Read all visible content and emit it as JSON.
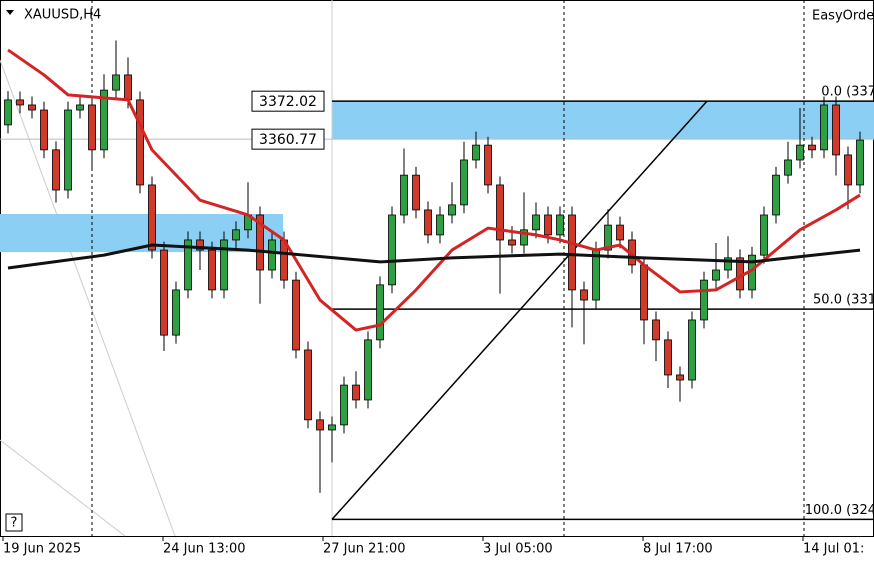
{
  "chart_data": {
    "type": "candlestick",
    "title": "XAUUSD,H4",
    "expert": "EasyOrde",
    "help": "?",
    "ylim": [
      3242,
      3402
    ],
    "x_labels": [
      "19 Jun 2025",
      "24 Jun 13:00",
      "27 Jun 21:00",
      "3 Jul 05:00",
      "8 Jul 17:00",
      "14 Jul 01:"
    ],
    "colors": {
      "up": "#2ea043",
      "down": "#d03a2a",
      "zone": "#8ccff5",
      "ma_fast": "#d42424",
      "ma_slow": "#111111"
    },
    "ohlc": [
      [
        3365.0,
        3375.0,
        3362.5,
        3372.4
      ],
      [
        3372.4,
        3374.9,
        3368.4,
        3370.9
      ],
      [
        3370.9,
        3373.4,
        3366.9,
        3369.4
      ],
      [
        3369.4,
        3371.9,
        3355.1,
        3357.6
      ],
      [
        3357.6,
        3360.1,
        3342.0,
        3345.7
      ],
      [
        3345.7,
        3371.9,
        3343.2,
        3369.4
      ],
      [
        3369.4,
        3373.4,
        3366.9,
        3370.9
      ],
      [
        3370.9,
        3373.4,
        3352.0,
        3357.6
      ],
      [
        3357.6,
        3380.0,
        3355.1,
        3375.3
      ],
      [
        3375.3,
        3390.0,
        3372.8,
        3379.8
      ],
      [
        3379.8,
        3385.0,
        3369.9,
        3372.4
      ],
      [
        3372.4,
        3374.9,
        3344.7,
        3347.2
      ],
      [
        3347.2,
        3349.7,
        3325.4,
        3327.9
      ],
      [
        3327.9,
        3330.4,
        3298.0,
        3302.7
      ],
      [
        3302.7,
        3318.6,
        3300.2,
        3316.1
      ],
      [
        3316.1,
        3333.4,
        3313.6,
        3330.9
      ],
      [
        3330.9,
        3333.4,
        3322.0,
        3327.9
      ],
      [
        3327.9,
        3330.4,
        3313.6,
        3316.1
      ],
      [
        3316.1,
        3333.4,
        3313.6,
        3330.9
      ],
      [
        3330.9,
        3336.4,
        3328.4,
        3333.9
      ],
      [
        3333.9,
        3348.0,
        3331.4,
        3338.3
      ],
      [
        3338.3,
        3340.8,
        3312.0,
        3322.0
      ],
      [
        3322.0,
        3333.4,
        3319.5,
        3330.9
      ],
      [
        3330.9,
        3333.4,
        3316.5,
        3319.0
      ],
      [
        3319.0,
        3321.5,
        3295.8,
        3298.3
      ],
      [
        3298.3,
        3300.8,
        3275.1,
        3277.6
      ],
      [
        3277.6,
        3280.1,
        3256.0,
        3274.6
      ],
      [
        3274.6,
        3278.6,
        3265.0,
        3276.1
      ],
      [
        3276.1,
        3290.4,
        3273.6,
        3287.9
      ],
      [
        3287.9,
        3292.0,
        3281.0,
        3283.5
      ],
      [
        3283.5,
        3303.8,
        3281.0,
        3301.3
      ],
      [
        3301.3,
        3320.1,
        3298.8,
        3317.6
      ],
      [
        3317.6,
        3340.8,
        3315.1,
        3338.3
      ],
      [
        3338.3,
        3358.0,
        3335.8,
        3350.1
      ],
      [
        3350.1,
        3352.6,
        3337.3,
        3339.8
      ],
      [
        3339.8,
        3342.3,
        3329.9,
        3332.4
      ],
      [
        3332.4,
        3340.8,
        3329.9,
        3338.3
      ],
      [
        3338.3,
        3348.0,
        3335.8,
        3341.3
      ],
      [
        3341.3,
        3360.0,
        3338.8,
        3354.6
      ],
      [
        3354.6,
        3363.0,
        3352.1,
        3359.0
      ],
      [
        3359.0,
        3361.5,
        3344.7,
        3347.2
      ],
      [
        3347.2,
        3349.7,
        3315.0,
        3330.9
      ],
      [
        3330.9,
        3335.0,
        3326.9,
        3329.4
      ],
      [
        3329.4,
        3345.0,
        3326.9,
        3333.9
      ],
      [
        3333.9,
        3342.0,
        3331.4,
        3338.3
      ],
      [
        3338.3,
        3340.8,
        3329.9,
        3332.4
      ],
      [
        3332.4,
        3340.8,
        3329.9,
        3338.3
      ],
      [
        3338.3,
        3340.8,
        3305.0,
        3316.1
      ],
      [
        3316.1,
        3318.6,
        3300.0,
        3313.1
      ],
      [
        3313.1,
        3330.4,
        3310.6,
        3327.9
      ],
      [
        3327.9,
        3340.0,
        3325.4,
        3335.3
      ],
      [
        3335.3,
        3337.8,
        3328.4,
        3330.9
      ],
      [
        3330.9,
        3333.4,
        3321.0,
        3323.5
      ],
      [
        3323.5,
        3326.0,
        3300.0,
        3307.2
      ],
      [
        3307.2,
        3309.7,
        3295.0,
        3301.3
      ],
      [
        3301.3,
        3303.8,
        3287.0,
        3290.9
      ],
      [
        3290.9,
        3293.4,
        3283.0,
        3289.4
      ],
      [
        3289.4,
        3309.7,
        3286.9,
        3307.2
      ],
      [
        3307.2,
        3321.5,
        3304.7,
        3319.0
      ],
      [
        3319.0,
        3330.0,
        3316.5,
        3322.0
      ],
      [
        3322.0,
        3332.0,
        3319.5,
        3325.6
      ],
      [
        3325.6,
        3328.1,
        3313.6,
        3316.1
      ],
      [
        3316.1,
        3328.9,
        3313.6,
        3326.4
      ],
      [
        3326.4,
        3340.8,
        3323.9,
        3338.3
      ],
      [
        3338.3,
        3352.6,
        3335.8,
        3350.1
      ],
      [
        3350.1,
        3360.0,
        3347.6,
        3354.6
      ],
      [
        3354.6,
        3370.0,
        3352.1,
        3359.0
      ],
      [
        3359.0,
        3361.5,
        3355.1,
        3357.6
      ],
      [
        3357.6,
        3373.4,
        3355.1,
        3370.9
      ],
      [
        3370.9,
        3373.4,
        3350.0,
        3356.1
      ],
      [
        3356.1,
        3358.6,
        3340.0,
        3347.2
      ],
      [
        3347.2,
        3363.0,
        3344.7,
        3360.5
      ]
    ],
    "lines": [
      {
        "key": "ma_fast",
        "x": [
          0,
          3,
          5,
          10,
          12,
          16,
          20,
          23,
          26,
          29,
          31,
          34,
          37,
          40,
          44,
          46,
          49,
          51,
          53,
          56,
          59,
          62,
          66,
          69,
          71
        ],
        "values": [
          3387.2,
          3379.8,
          3373.9,
          3372.4,
          3357.6,
          3342.7,
          3338.3,
          3330.9,
          3313.1,
          3304.2,
          3305.7,
          3316.1,
          3327.9,
          3334.4,
          3332.4,
          3330.9,
          3327.9,
          3329.4,
          3323.5,
          3315.5,
          3316.1,
          3322.0,
          3333.9,
          3339.8,
          3344.2
        ]
      },
      {
        "key": "ma_slow",
        "x": [
          0,
          8,
          12,
          20,
          31,
          37,
          46,
          53,
          62,
          71
        ],
        "values": [
          3322.6,
          3326.4,
          3329.4,
          3327.9,
          3324.4,
          3325.6,
          3326.7,
          3325.6,
          3324.4,
          3327.9
        ]
      }
    ],
    "zones": [
      {
        "high": 3372.02,
        "low": 3360.77
      },
      {
        "high": 3338.6,
        "low": 3327.3
      }
    ],
    "fib_levels": [
      {
        "value": 3372.02,
        "label": "0.0 (337"
      },
      {
        "value": 3310.4,
        "label": "50.0 (331"
      },
      {
        "value": 3248.1,
        "label": "100.0 (324"
      }
    ]
  }
}
